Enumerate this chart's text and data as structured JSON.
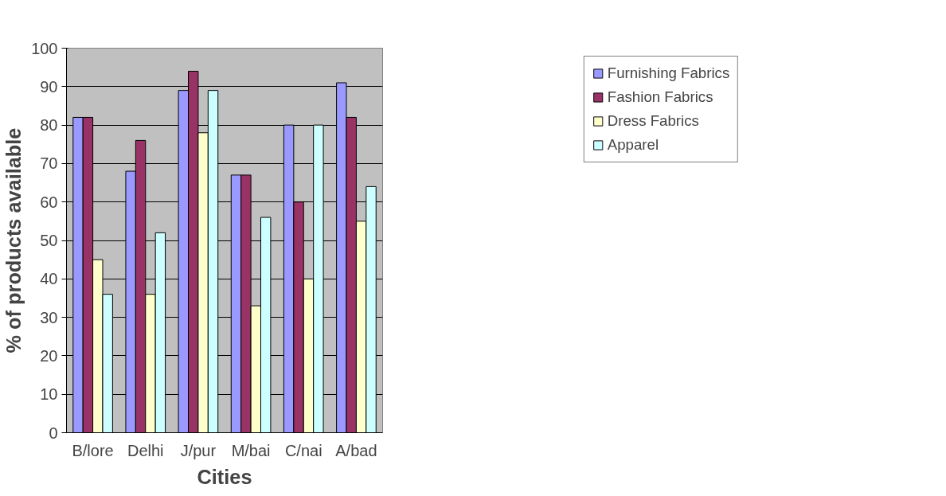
{
  "chart_data": {
    "type": "bar",
    "xlabel": "Cities",
    "ylabel": "% of products available",
    "categories": [
      "B/lore",
      "Delhi",
      "J/pur",
      "M/bai",
      "C/nai",
      "A/bad"
    ],
    "series": [
      {
        "name": "Furnishing Fabrics",
        "color": "#9999ff",
        "values": [
          82,
          68,
          89,
          67,
          80,
          91
        ]
      },
      {
        "name": "Fashion Fabrics",
        "color": "#993366",
        "values": [
          82,
          76,
          94,
          67,
          60,
          82
        ]
      },
      {
        "name": "Dress Fabrics",
        "color": "#ffffcc",
        "values": [
          45,
          36,
          78,
          33,
          40,
          55
        ]
      },
      {
        "name": "Apparel",
        "color": "#ccffff",
        "values": [
          36,
          52,
          89,
          56,
          80,
          64
        ]
      }
    ],
    "ylim": [
      0,
      100
    ],
    "yticks": [
      0,
      10,
      20,
      30,
      40,
      50,
      60,
      70,
      80,
      90,
      100
    ],
    "grid": "y",
    "legend": "top right"
  }
}
